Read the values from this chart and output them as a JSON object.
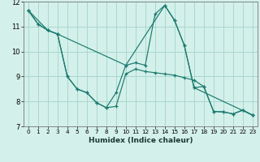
{
  "xlabel": "Humidex (Indice chaleur)",
  "xlim": [
    -0.5,
    23.5
  ],
  "ylim": [
    7,
    12
  ],
  "yticks": [
    7,
    8,
    9,
    10,
    11,
    12
  ],
  "xticks": [
    0,
    1,
    2,
    3,
    4,
    5,
    6,
    7,
    8,
    9,
    10,
    11,
    12,
    13,
    14,
    15,
    16,
    17,
    18,
    19,
    20,
    21,
    22,
    23
  ],
  "background_color": "#d4f0ea",
  "grid_color": "#a8d8d0",
  "line_color": "#1a7a6e",
  "line1_x": [
    0,
    1,
    2,
    3,
    4,
    5,
    6,
    7,
    8,
    9,
    10,
    11,
    12,
    13,
    14,
    15,
    16,
    17,
    18,
    19,
    20,
    21,
    22,
    23
  ],
  "line1_y": [
    11.65,
    11.1,
    10.85,
    10.7,
    9.0,
    8.5,
    8.35,
    7.95,
    7.75,
    8.35,
    9.45,
    9.55,
    9.45,
    11.5,
    11.85,
    11.25,
    10.25,
    8.55,
    8.6,
    7.6,
    7.58,
    7.5,
    7.65,
    7.45
  ],
  "line2_x": [
    0,
    1,
    2,
    3,
    4,
    5,
    6,
    7,
    8,
    9,
    10,
    11,
    12,
    13,
    14,
    15,
    16,
    17,
    18,
    19,
    20,
    21,
    22,
    23
  ],
  "line2_y": [
    11.65,
    11.1,
    10.85,
    10.7,
    9.0,
    8.5,
    8.35,
    7.95,
    7.75,
    7.8,
    9.1,
    9.3,
    9.2,
    9.15,
    9.1,
    9.05,
    8.95,
    8.85,
    8.6,
    7.6,
    7.58,
    7.5,
    7.65,
    7.45
  ],
  "line3_x": [
    0,
    2,
    3,
    10,
    14,
    15,
    16,
    17,
    23
  ],
  "line3_y": [
    11.65,
    10.85,
    10.7,
    9.45,
    11.85,
    11.25,
    10.25,
    8.55,
    7.45
  ]
}
